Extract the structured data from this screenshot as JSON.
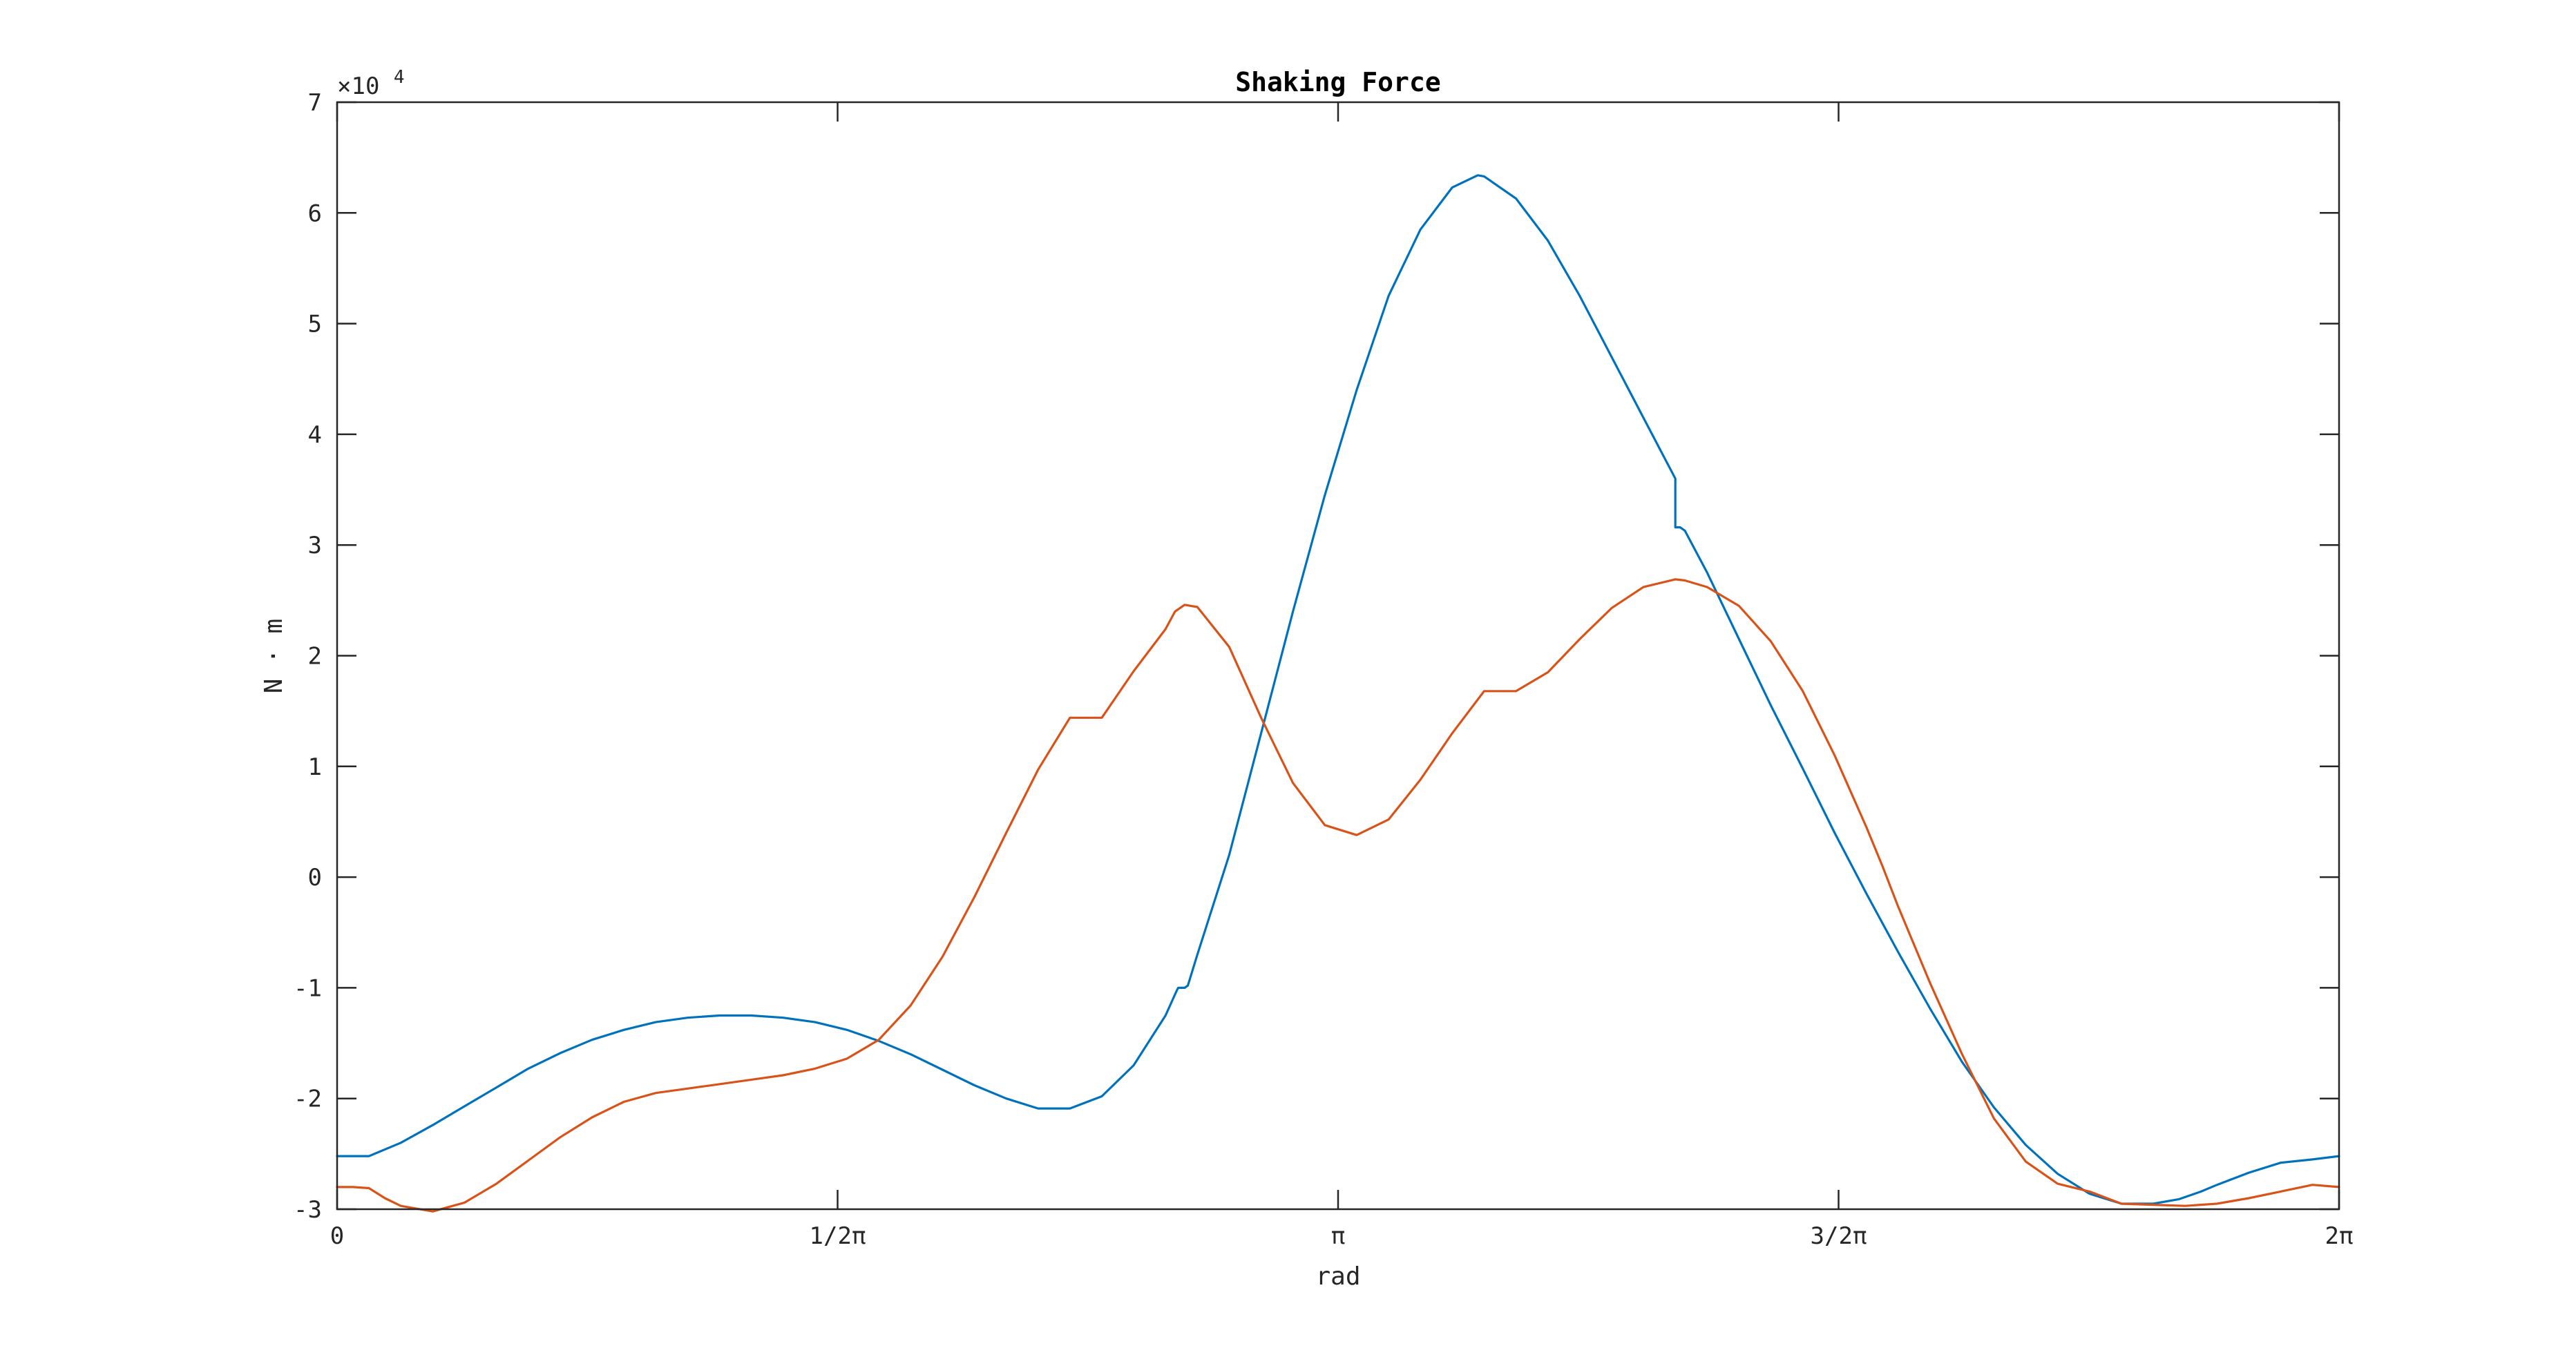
{
  "chart_data": {
    "type": "line",
    "title": "Shaking Force",
    "xlabel": "rad",
    "ylabel": "N · m",
    "exponent_label": "×10",
    "exponent_power": "4",
    "xlim": [
      0,
      6.283185
    ],
    "ylim": [
      -30000,
      70000
    ],
    "grid": false,
    "x_ticks": [
      {
        "value": 0,
        "label": "0"
      },
      {
        "value": 1.570796,
        "label": "1/2π"
      },
      {
        "value": 3.141593,
        "label": "π"
      },
      {
        "value": 4.712389,
        "label": "3/2π"
      },
      {
        "value": 6.283185,
        "label": "2π"
      }
    ],
    "y_ticks": [
      {
        "value": -30000,
        "label": "-3"
      },
      {
        "value": -20000,
        "label": "-2"
      },
      {
        "value": -10000,
        "label": "-1"
      },
      {
        "value": 0,
        "label": "0"
      },
      {
        "value": 10000,
        "label": "1"
      },
      {
        "value": 20000,
        "label": "2"
      },
      {
        "value": 30000,
        "label": "3"
      },
      {
        "value": 40000,
        "label": "4"
      },
      {
        "value": 50000,
        "label": "5"
      },
      {
        "value": 60000,
        "label": "6"
      },
      {
        "value": 70000,
        "label": "7"
      }
    ],
    "series": [
      {
        "color": "#0072BD",
        "x": [
          0,
          0.05,
          0.1,
          0.2,
          0.3,
          0.4,
          0.5,
          0.6,
          0.7,
          0.8,
          0.9,
          1.0,
          1.1,
          1.2,
          1.3,
          1.4,
          1.5,
          1.6,
          1.7,
          1.8,
          1.9,
          2.0,
          2.1,
          2.2,
          2.3,
          2.4,
          2.5,
          2.6,
          2.636,
          2.64,
          2.66,
          2.67,
          2.7,
          2.8,
          2.9,
          3.0,
          3.1,
          3.2,
          3.3,
          3.4,
          3.5,
          3.58,
          3.6,
          3.7,
          3.8,
          3.9,
          4.0,
          4.1,
          4.2,
          4.2,
          4.215,
          4.23,
          4.3,
          4.4,
          4.5,
          4.6,
          4.7,
          4.8,
          4.9,
          5.0,
          5.1,
          5.2,
          5.3,
          5.4,
          5.5,
          5.6,
          5.7,
          5.78,
          5.85,
          5.9,
          6.0,
          6.1,
          6.2,
          6.283
        ],
        "y": [
          -25200,
          -25200,
          -25200,
          -24000,
          -22400,
          -20700,
          -19000,
          -17300,
          -15900,
          -14700,
          -13800,
          -13100,
          -12700,
          -12500,
          -12500,
          -12700,
          -13100,
          -13800,
          -14800,
          -16000,
          -17400,
          -18800,
          -20000,
          -20900,
          -20900,
          -19800,
          -17000,
          -12500,
          -10200,
          -10000,
          -10000,
          -9800,
          -7000,
          2000,
          13000,
          24000,
          34500,
          44000,
          52500,
          58500,
          62300,
          63400,
          63300,
          61300,
          57500,
          52500,
          47000,
          41500,
          36000,
          31600,
          31600,
          31300,
          27500,
          21500,
          15500,
          9800,
          4000,
          -1500,
          -6800,
          -11900,
          -16700,
          -20800,
          -24200,
          -26800,
          -28600,
          -29500,
          -29500,
          -29100,
          -28400,
          -27800,
          -26700,
          -25800,
          -25500,
          -25200
        ]
      },
      {
        "color": "#D95319",
        "x": [
          0,
          0.05,
          0.1,
          0.15,
          0.2,
          0.3,
          0.4,
          0.5,
          0.6,
          0.7,
          0.8,
          0.9,
          1.0,
          1.1,
          1.2,
          1.3,
          1.4,
          1.5,
          1.6,
          1.7,
          1.8,
          1.9,
          2.0,
          2.1,
          2.2,
          2.3,
          2.4,
          2.5,
          2.6,
          2.63,
          2.66,
          2.7,
          2.8,
          2.9,
          3.0,
          3.1,
          3.2,
          3.3,
          3.4,
          3.5,
          3.6,
          3.7,
          3.8,
          3.9,
          4.0,
          4.1,
          4.2,
          4.2,
          4.23,
          4.3,
          4.4,
          4.5,
          4.6,
          4.7,
          4.8,
          4.85,
          4.9,
          5.0,
          5.1,
          5.2,
          5.3,
          5.4,
          5.5,
          5.6,
          5.7,
          5.8,
          5.9,
          6.0,
          6.1,
          6.2,
          6.283
        ],
        "y": [
          -28000,
          -28000,
          -28100,
          -29000,
          -29700,
          -30200,
          -29400,
          -27700,
          -25600,
          -23500,
          -21700,
          -20300,
          -19500,
          -19100,
          -18700,
          -18300,
          -17900,
          -17300,
          -16400,
          -14700,
          -11600,
          -7200,
          -1800,
          4000,
          9700,
          14400,
          14400,
          18600,
          22400,
          24000,
          24600,
          24400,
          20800,
          14400,
          8500,
          4700,
          3800,
          5200,
          8800,
          13000,
          16800,
          16800,
          18500,
          21500,
          24300,
          26200,
          26900,
          26900,
          26800,
          26200,
          24500,
          21300,
          16800,
          11000,
          4500,
          1000,
          -2700,
          -9600,
          -16000,
          -21800,
          -25700,
          -27700,
          -28400,
          -29500,
          -29600,
          -29700,
          -29500,
          -29000,
          -28400,
          -27800,
          -28000
        ]
      }
    ]
  }
}
